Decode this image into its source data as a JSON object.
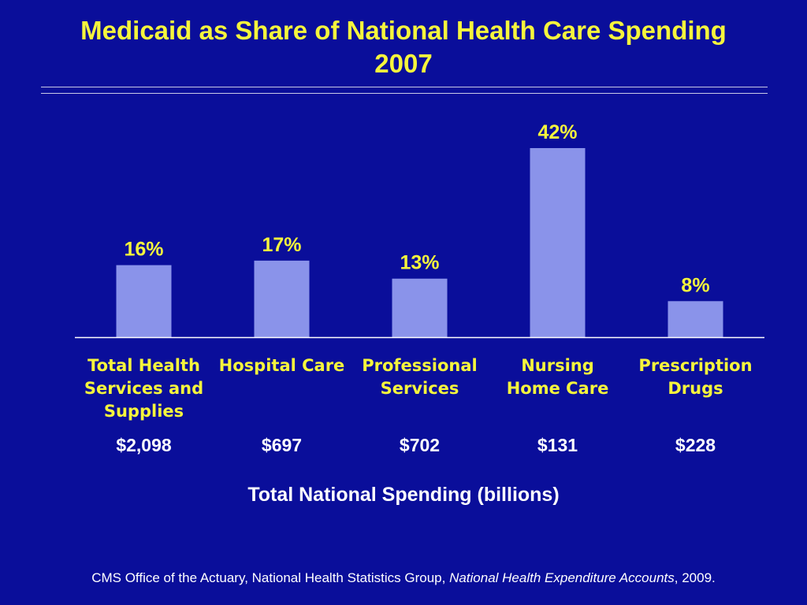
{
  "slide": {
    "title_line1": "Medicaid as Share of National Health Care Spending",
    "title_line2": "2007",
    "source_prefix": "CMS Office of the Actuary, National Health Statistics Group, ",
    "source_title": "National Health Expenditure Accounts",
    "source_suffix": ", 2009."
  },
  "colors": {
    "background": "#0a0e9a",
    "bar": "#8a93ea",
    "title": "#f5f53c",
    "data_label": "#f5f53c",
    "category_label": "#f5f53c",
    "spending_label": "#ffffff"
  },
  "chart_data": {
    "type": "bar",
    "categories": [
      [
        "Total Health",
        "Services and",
        "Supplies"
      ],
      [
        "Hospital Care"
      ],
      [
        "Professional",
        "Services"
      ],
      [
        "Nursing",
        "Home Care"
      ],
      [
        "Prescription",
        "Drugs"
      ]
    ],
    "values": [
      16,
      17,
      13,
      42,
      8
    ],
    "value_labels": [
      "16%",
      "17%",
      "13%",
      "42%",
      "8%"
    ],
    "spending_labels": [
      "$2,098",
      "$697",
      "$702",
      "$131",
      "$228"
    ],
    "xlabel": "Total National Spending (billions)",
    "ylim": [
      0,
      42
    ],
    "grid": false,
    "legend": "none"
  }
}
